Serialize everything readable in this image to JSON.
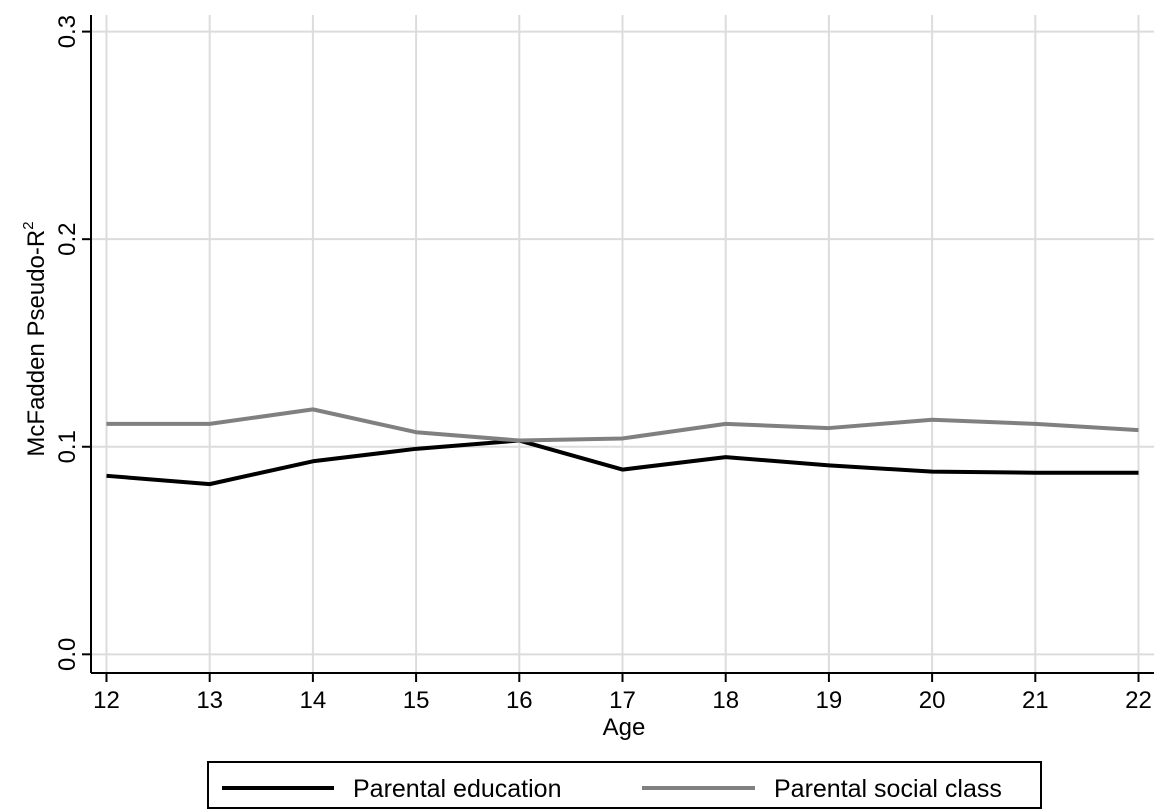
{
  "chart_data": {
    "type": "line",
    "title": "",
    "xlabel": "Age",
    "ylabel": "McFadden Pseudo-R",
    "ylabel_superscript": "2",
    "x": [
      12,
      13,
      14,
      15,
      16,
      17,
      18,
      19,
      20,
      21,
      22
    ],
    "x_tick_labels": [
      "12",
      "13",
      "14",
      "15",
      "16",
      "17",
      "18",
      "19",
      "20",
      "21",
      "22"
    ],
    "y_ticks": [
      0.0,
      0.1,
      0.2,
      0.3
    ],
    "y_tick_labels": [
      "0.0",
      "0.1",
      "0.2",
      "0.3"
    ],
    "xlim": [
      11.85,
      22.15
    ],
    "ylim": [
      -0.009,
      0.308
    ],
    "grid": true,
    "legend_position": "bottom",
    "series": [
      {
        "name": "Parental education",
        "color": "#000000",
        "values": [
          0.086,
          0.082,
          0.093,
          0.099,
          0.103,
          0.089,
          0.095,
          0.091,
          0.088,
          0.0875,
          0.0875
        ]
      },
      {
        "name": "Parental social class",
        "color": "#808080",
        "values": [
          0.111,
          0.111,
          0.118,
          0.107,
          0.103,
          0.104,
          0.111,
          0.109,
          0.113,
          0.111,
          0.108
        ]
      }
    ]
  }
}
